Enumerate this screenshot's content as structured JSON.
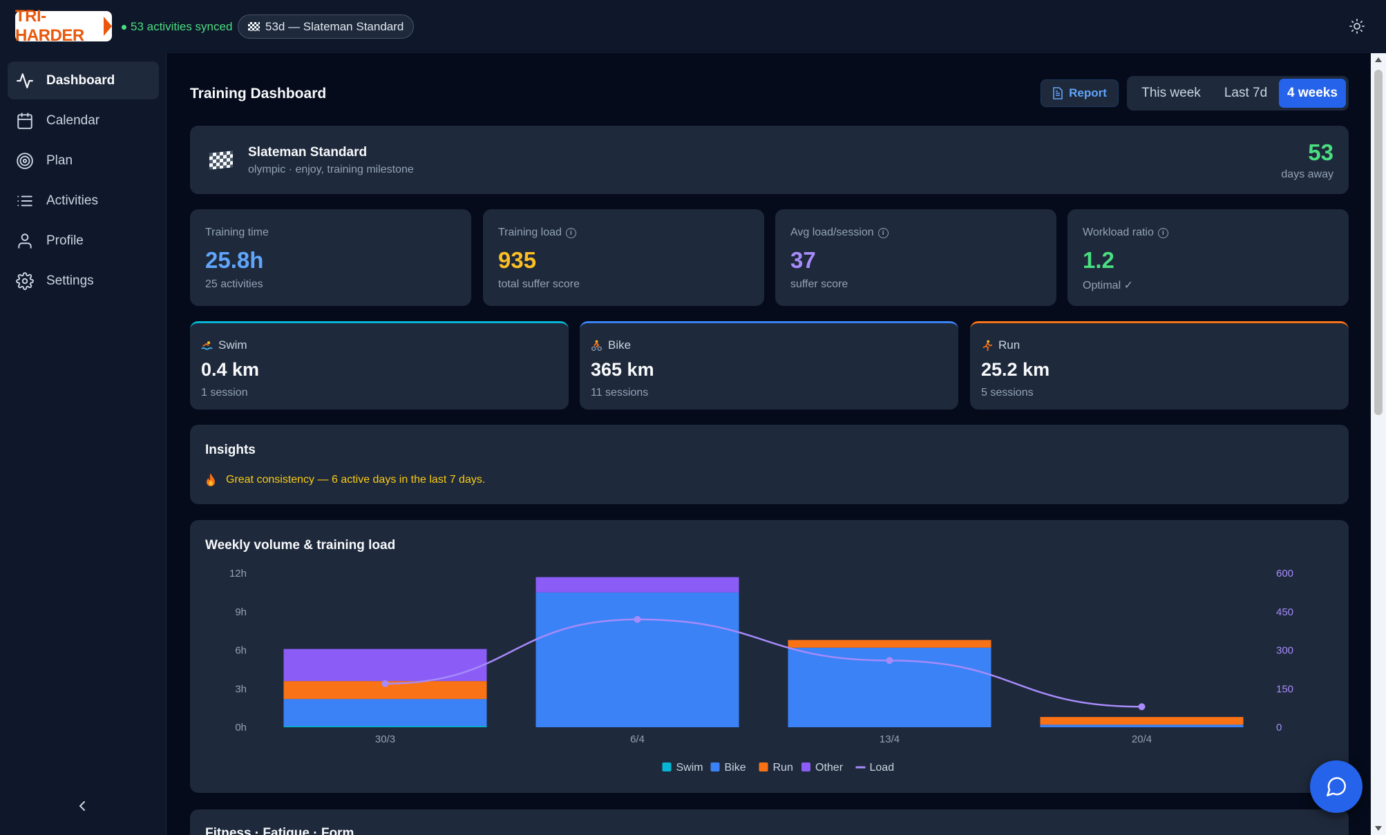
{
  "app": {
    "logo_text": "TRI-HARDER"
  },
  "topbar": {
    "sync_status": "53 activities synced",
    "race_pill": "53d — Slateman Standard",
    "theme_icon": "sun-icon"
  },
  "sidebar": {
    "items": [
      {
        "label": "Dashboard",
        "icon": "activity-icon",
        "active": true
      },
      {
        "label": "Calendar",
        "icon": "calendar-icon",
        "active": false
      },
      {
        "label": "Plan",
        "icon": "target-icon",
        "active": false
      },
      {
        "label": "Activities",
        "icon": "list-icon",
        "active": false
      },
      {
        "label": "Profile",
        "icon": "user-icon",
        "active": false
      },
      {
        "label": "Settings",
        "icon": "gear-icon",
        "active": false
      }
    ],
    "collapse_icon": "chevron-left-icon"
  },
  "header": {
    "title": "Training Dashboard",
    "report_label": "Report",
    "ranges": [
      "This week",
      "Last 7d",
      "4 weeks"
    ],
    "selected_range": "4 weeks"
  },
  "race": {
    "name": "Slateman Standard",
    "details": "olympic · enjoy, training milestone",
    "days": "53",
    "days_label": "days away"
  },
  "stats": [
    {
      "label": "Training time",
      "value": "25.8h",
      "sub": "25 activities",
      "color": "#60a5fa",
      "info": false
    },
    {
      "label": "Training load",
      "value": "935",
      "sub": "total suffer score",
      "color": "#fbbf24",
      "info": true
    },
    {
      "label": "Avg load/session",
      "value": "37",
      "sub": "suffer score",
      "color": "#a78bfa",
      "info": true
    },
    {
      "label": "Workload ratio",
      "value": "1.2",
      "sub": "Optimal ✓",
      "color": "#4ade80",
      "info": true
    }
  ],
  "sports": [
    {
      "label": "Swim",
      "value": "0.4 km",
      "sub": "1 session",
      "color": "#06b6d4",
      "icon": "swimmer-icon"
    },
    {
      "label": "Bike",
      "value": "365 km",
      "sub": "11 sessions",
      "color": "#3b82f6",
      "icon": "cyclist-icon"
    },
    {
      "label": "Run",
      "value": "25.2 km",
      "sub": "5 sessions",
      "color": "#f97316",
      "icon": "runner-icon"
    }
  ],
  "insights": {
    "title": "Insights",
    "items": [
      {
        "icon": "fire-icon",
        "text": "Great consistency — 6 active days in the last 7 days."
      }
    ]
  },
  "chart_data": {
    "type": "bar",
    "title": "Weekly volume & training load",
    "categories": [
      "30/3",
      "6/4",
      "13/4",
      "20/4"
    ],
    "stacked": true,
    "series": [
      {
        "name": "Swim",
        "values": [
          0.1,
          0,
          0,
          0
        ],
        "color": "#06b6d4",
        "axis": "left"
      },
      {
        "name": "Bike",
        "values": [
          2.1,
          10.5,
          6.2,
          0.2
        ],
        "color": "#3b82f6",
        "axis": "left"
      },
      {
        "name": "Run",
        "values": [
          1.4,
          0,
          0.6,
          0.6
        ],
        "color": "#f97316",
        "axis": "left"
      },
      {
        "name": "Other",
        "values": [
          2.5,
          1.2,
          0,
          0
        ],
        "color": "#8b5cf6",
        "axis": "left"
      },
      {
        "name": "Load",
        "type": "line",
        "values": [
          170,
          420,
          260,
          80
        ],
        "color": "#a78bfa",
        "axis": "right"
      }
    ],
    "ylim_left": [
      0,
      12
    ],
    "yticks_left": [
      "0h",
      "3h",
      "6h",
      "9h",
      "12h"
    ],
    "ylim_right": [
      0,
      600
    ],
    "yticks_right": [
      "0",
      "150",
      "300",
      "450",
      "600"
    ],
    "legend_position": "bottom-center",
    "grid": false
  },
  "next_section": {
    "title": "Fitness · Fatigue · Form"
  },
  "chat": {
    "icon": "chat-bubble-icon"
  }
}
